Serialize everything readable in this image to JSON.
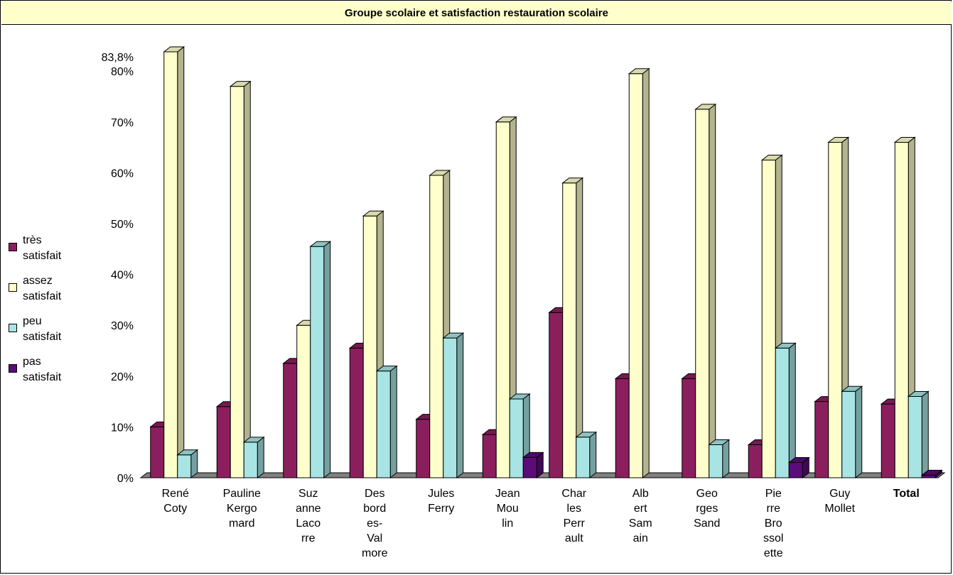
{
  "chart_data": {
    "type": "bar",
    "title": "Groupe scolaire et satisfaction restauration scolaire",
    "categories": [
      "René Coty",
      "Pauline Kergomard",
      "Suzanne Lacorre",
      "Desbordes-Valmore",
      "Jules Ferry",
      "Jean Moulin",
      "Charles Perrault",
      "Albert Samain",
      "Georges Sand",
      "Pierre Brossolette",
      "Guy Mollet",
      "Total"
    ],
    "category_label_lines": [
      [
        "René",
        "Coty"
      ],
      [
        "Pauline",
        "Kergo",
        "mard"
      ],
      [
        "Suz",
        "anne",
        "Laco",
        "rre"
      ],
      [
        "Des",
        "bord",
        "es-",
        "Val",
        "more"
      ],
      [
        "Jules",
        "Ferry"
      ],
      [
        "Jean",
        "Mou",
        "lin"
      ],
      [
        "Char",
        "les",
        "Perr",
        "ault"
      ],
      [
        "Alb",
        "ert",
        "Sam",
        "ain"
      ],
      [
        "Geo",
        "rges",
        "Sand"
      ],
      [
        "Pie",
        "rre",
        "Bro",
        "ssol",
        "ette"
      ],
      [
        "Guy",
        "Mollet"
      ],
      [
        "Total"
      ]
    ],
    "bold_categories": [
      "Total"
    ],
    "series": [
      {
        "name": "très satisfait",
        "legend_lines": [
          "très",
          "satisfait"
        ],
        "color": "#8b1f5e",
        "values": [
          10,
          14,
          22.5,
          25.5,
          11.5,
          8.5,
          32.5,
          19.5,
          19.5,
          6.5,
          15,
          14.5
        ]
      },
      {
        "name": "assez satisfait",
        "legend_lines": [
          "assez",
          "satisfait"
        ],
        "color": "#ffffcc",
        "values": [
          83.8,
          77,
          30,
          51.5,
          59.5,
          70,
          58,
          79.5,
          72.5,
          62.5,
          66,
          66
        ]
      },
      {
        "name": "peu satisfait",
        "legend_lines": [
          "peu",
          "satisfait"
        ],
        "color": "#a8e4e4",
        "values": [
          4.5,
          7,
          45.5,
          21,
          27.5,
          15.5,
          8,
          0,
          6.5,
          25.5,
          17,
          16
        ]
      },
      {
        "name": "pas satisfait",
        "legend_lines": [
          "pas",
          "satisfait"
        ],
        "color": "#5b0b7a",
        "values": [
          0,
          0,
          0,
          0,
          0,
          4,
          0,
          0,
          0,
          3,
          0,
          0.5
        ]
      }
    ],
    "y_ticks": [
      "0%",
      "10%",
      "20%",
      "30%",
      "40%",
      "50%",
      "60%",
      "70%",
      "80%"
    ],
    "y_tick_values": [
      0,
      10,
      20,
      30,
      40,
      50,
      60,
      70,
      80
    ],
    "annotations": [
      {
        "text": "83,8%",
        "value": 83.8
      }
    ],
    "ylim": [
      0,
      84
    ],
    "legend_position": "left",
    "grid": false
  },
  "colors": {
    "title_bg": "#ffffcc",
    "floor": "#808080"
  }
}
